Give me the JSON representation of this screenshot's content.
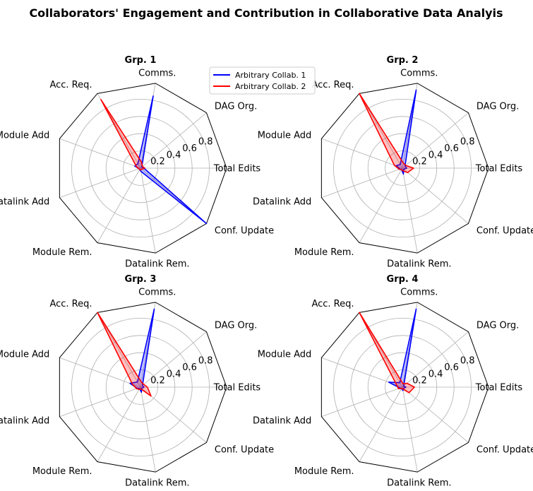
{
  "figure": {
    "title": "Collaborators' Engagement and Contribution in Collaborative Data Analyis"
  },
  "chart_data": [
    {
      "type": "radar",
      "title": "Grp. 1",
      "categories": [
        "Total Edits",
        "DAG Org.",
        "Comms.",
        "Acc. Req.",
        "Module Add",
        "Datalink Add",
        "Module Rem.",
        "Datalink Rem.",
        "Conf. Update"
      ],
      "radial_ticks": [
        "0.2",
        "0.4",
        "0.6",
        "0.8"
      ],
      "rlim": [
        0,
        1
      ],
      "legend": "top-right",
      "series": [
        {
          "name": "Arbitrary Collab. 1",
          "color": "#0000ff",
          "values": [
            0.04,
            0.02,
            0.85,
            0.06,
            0.07,
            0.02,
            0.02,
            0.04,
            1.0
          ]
        },
        {
          "name": "Arbitrary Collab. 2",
          "color": "#ff0000",
          "values": [
            0.05,
            0.03,
            0.07,
            0.92,
            0.05,
            0.02,
            0.02,
            0.02,
            0.02
          ]
        }
      ]
    },
    {
      "type": "radar",
      "title": "Grp. 2",
      "categories": [
        "Total Edits",
        "DAG Org.",
        "Comms.",
        "Acc. Req.",
        "Module Add",
        "Datalink Add",
        "Module Rem.",
        "Datalink Rem.",
        "Conf. Update"
      ],
      "radial_ticks": [
        "0.2",
        "0.4",
        "0.6",
        "0.8"
      ],
      "rlim": [
        0,
        1
      ],
      "series": [
        {
          "name": "Arbitrary Collab. 1",
          "color": "#0000ff",
          "values": [
            0.05,
            0.04,
            0.92,
            0.05,
            0.08,
            0.03,
            0.02,
            0.07,
            0.02
          ]
        },
        {
          "name": "Arbitrary Collab. 2",
          "color": "#ff0000",
          "values": [
            0.13,
            0.05,
            0.06,
            1.0,
            0.1,
            0.04,
            0.02,
            0.03,
            0.08
          ]
        }
      ]
    },
    {
      "type": "radar",
      "title": "Grp. 3",
      "categories": [
        "Total Edits",
        "DAG Org.",
        "Comms.",
        "Acc. Req.",
        "Module Add",
        "Datalink Add",
        "Module Rem.",
        "Datalink Rem.",
        "Conf. Update"
      ],
      "radial_ticks": [
        "0.2",
        "0.4",
        "0.6",
        "0.8"
      ],
      "rlim": [
        0,
        1
      ],
      "series": [
        {
          "name": "Arbitrary Collab. 1",
          "color": "#0000ff",
          "values": [
            0.04,
            0.03,
            0.92,
            0.07,
            0.13,
            0.04,
            0.02,
            0.06,
            0.02
          ]
        },
        {
          "name": "Arbitrary Collab. 2",
          "color": "#ff0000",
          "values": [
            0.08,
            0.05,
            0.06,
            1.0,
            0.1,
            0.05,
            0.03,
            0.02,
            0.16
          ]
        }
      ]
    },
    {
      "type": "radar",
      "title": "Grp. 4",
      "categories": [
        "Total Edits",
        "DAG Org.",
        "Comms.",
        "Acc. Req.",
        "Module Add",
        "Datalink Add",
        "Module Rem.",
        "Datalink Rem.",
        "Conf. Update"
      ],
      "radial_ticks": [
        "0.2",
        "0.4",
        "0.6",
        "0.8"
      ],
      "rlim": [
        0,
        1
      ],
      "series": [
        {
          "name": "Arbitrary Collab. 1",
          "color": "#0000ff",
          "values": [
            0.04,
            0.02,
            0.92,
            0.06,
            0.17,
            0.03,
            0.02,
            0.04,
            0.02
          ]
        },
        {
          "name": "Arbitrary Collab. 2",
          "color": "#ff0000",
          "values": [
            0.14,
            0.07,
            0.04,
            1.0,
            0.07,
            0.05,
            0.02,
            0.02,
            0.1
          ]
        }
      ]
    }
  ]
}
